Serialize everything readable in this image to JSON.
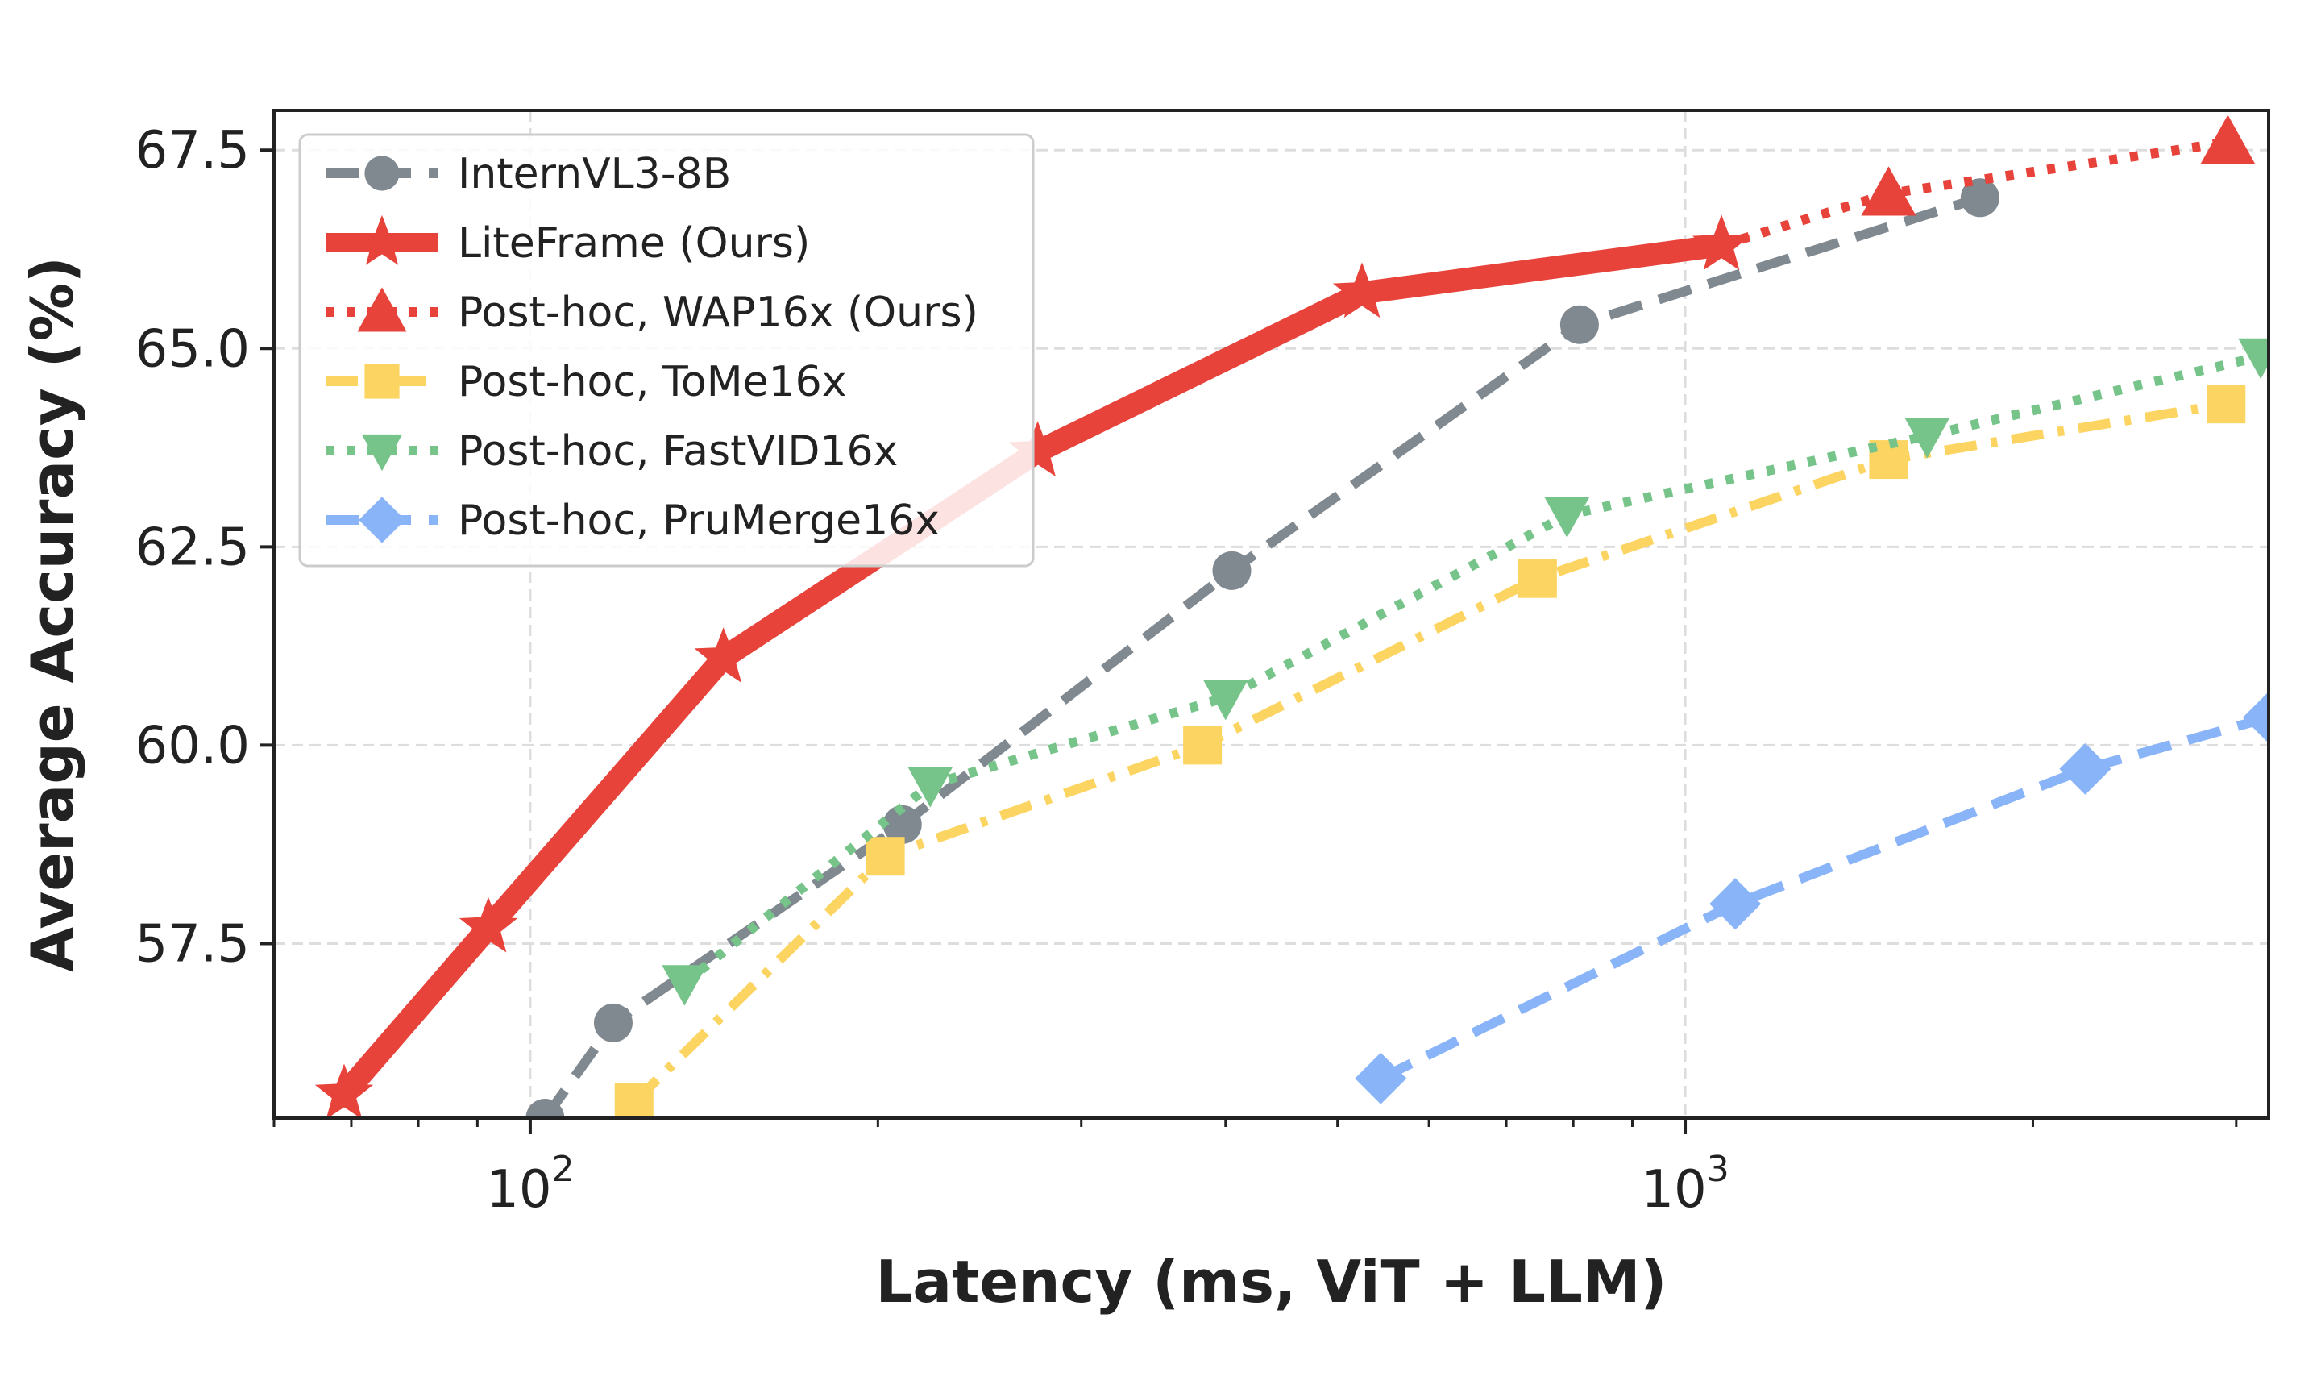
{
  "chart_data": {
    "type": "line",
    "title": "",
    "xlabel": "Latency (ms, ViT + LLM)",
    "ylabel": "Average Accuracy (%)",
    "xscale": "log",
    "xlim": [
      60,
      3200
    ],
    "ylim": [
      55.3,
      68.0
    ],
    "xticks": [
      {
        "value": 100,
        "base": "10",
        "exp": "2"
      },
      {
        "value": 1000,
        "base": "10",
        "exp": "3"
      }
    ],
    "yticks": [
      {
        "value": 57.5,
        "label": "57.5"
      },
      {
        "value": 60.0,
        "label": "60.0"
      },
      {
        "value": 62.5,
        "label": "62.5"
      },
      {
        "value": 65.0,
        "label": "65.0"
      },
      {
        "value": 67.5,
        "label": "67.5"
      }
    ],
    "grid": true,
    "legend_position": "top-left",
    "series": [
      {
        "name": "InternVL3-8B",
        "color": "#808890",
        "marker": "circle",
        "dash": "dashed",
        "x": [
          103,
          118,
          210,
          405,
          810,
          1800
        ],
        "y": [
          55.3,
          56.5,
          59.0,
          62.2,
          65.3,
          66.9
        ]
      },
      {
        "name": "LiteFrame (Ours)",
        "color": "#e8433a",
        "marker": "star",
        "dash": "solid",
        "x": [
          69,
          92,
          147,
          275,
          525,
          1075
        ],
        "y": [
          55.6,
          57.7,
          61.1,
          63.7,
          65.7,
          66.3
        ]
      },
      {
        "name": "Post-hoc, WAP16x (Ours)",
        "color": "#e8433a",
        "marker": "triangle-up",
        "dash": "dotted",
        "x": [
          1075,
          1500,
          2950
        ],
        "y": [
          66.3,
          66.95,
          67.6
        ]
      },
      {
        "name": "Post-hoc, ToMe16x",
        "color": "#fcd462",
        "marker": "square",
        "dash": "dashdot",
        "x": [
          123,
          203,
          382,
          745,
          1500,
          2940
        ],
        "y": [
          55.5,
          58.6,
          60.0,
          62.1,
          63.6,
          64.3
        ]
      },
      {
        "name": "Post-hoc, FastVID16x",
        "color": "#77c48a",
        "marker": "triangle-down",
        "dash": "dotted",
        "x": [
          136,
          222,
          400,
          790,
          1620,
          3150
        ],
        "y": [
          57.0,
          59.5,
          60.6,
          62.9,
          63.9,
          64.9
        ]
      },
      {
        "name": "Post-hoc, PruMerge16x",
        "color": "#8ab4f8",
        "marker": "diamond",
        "dash": "dashed",
        "x": [
          545,
          1105,
          2220,
          3200
        ],
        "y": [
          55.8,
          58.0,
          59.7,
          60.35
        ]
      }
    ]
  }
}
